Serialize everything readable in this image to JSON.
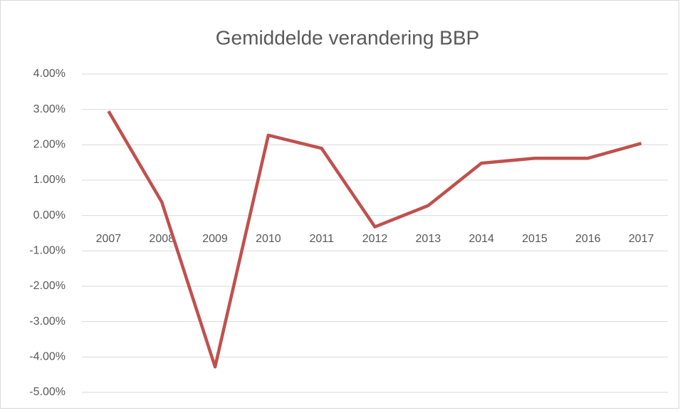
{
  "chart_data": {
    "type": "line",
    "title": "Gemiddelde verandering BBP",
    "categories": [
      "2007",
      "2008",
      "2009",
      "2010",
      "2011",
      "2012",
      "2013",
      "2014",
      "2015",
      "2016",
      "2017"
    ],
    "series": [
      {
        "name": "BBP",
        "color": "#c0504d",
        "values": [
          2.95,
          0.38,
          -4.28,
          2.27,
          1.9,
          -0.32,
          0.28,
          1.48,
          1.62,
          1.62,
          2.04
        ]
      }
    ],
    "ylim": [
      -5,
      4
    ],
    "yticks": [
      {
        "value": -5,
        "label": "-5.00%"
      },
      {
        "value": -4,
        "label": "-4.00%"
      },
      {
        "value": -3,
        "label": "-3.00%"
      },
      {
        "value": -2,
        "label": "-2.00%"
      },
      {
        "value": -1,
        "label": "-1.00%"
      },
      {
        "value": 0,
        "label": "0.00%"
      },
      {
        "value": 1,
        "label": "1.00%"
      },
      {
        "value": 2,
        "label": "2.00%"
      },
      {
        "value": 3,
        "label": "3.00%"
      },
      {
        "value": 4,
        "label": "4.00%"
      }
    ],
    "grid": true
  }
}
